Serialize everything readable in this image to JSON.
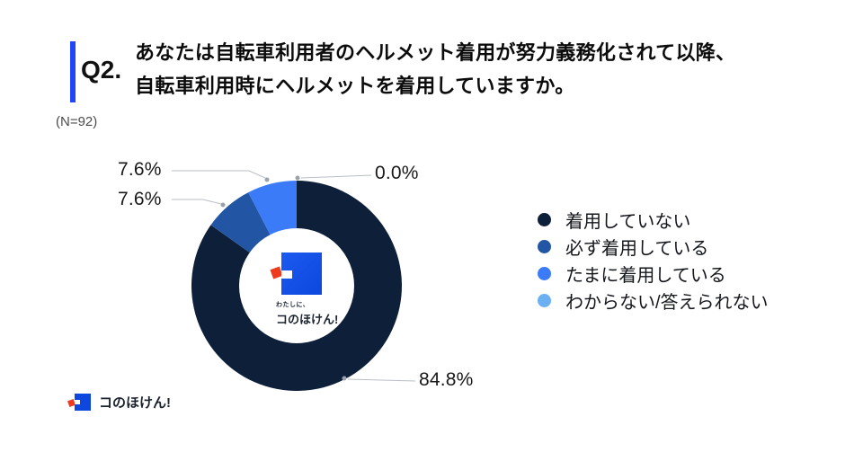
{
  "header": {
    "question_number": "Q2.",
    "question_line1": "あなたは自転車利用者のヘルメット着用が努力義務化されて以降、",
    "question_line2": "自転車利用時にヘルメットを着用していますか。",
    "sample_size": "(N=92)"
  },
  "chart_data": {
    "type": "pie",
    "subtype": "donut",
    "start_angle_deg": 0,
    "direction": "clockwise",
    "donut_hole_ratio": 0.55,
    "legend_position": "right",
    "unit": "%",
    "series": [
      {
        "name": "着用していない",
        "value": 84.8,
        "color": "#0e2039"
      },
      {
        "name": "必ず着用している",
        "value": 7.6,
        "color": "#2256a4"
      },
      {
        "name": "たまに着用している",
        "value": 7.6,
        "color": "#3b7bf7"
      },
      {
        "name": "わからない/答えられない",
        "value": 0.0,
        "color": "#6cb0f4"
      }
    ]
  },
  "center_logo": {
    "tagline": "わたしに、",
    "brand": "コのほけん!"
  },
  "footer": {
    "brand": "コのほけん!"
  },
  "colors": {
    "accent_bar": "#1f47f7",
    "logo_blue": "#0d47dd",
    "logo_red": "#ee3a1e",
    "leader_line": "#b9bfc7"
  }
}
